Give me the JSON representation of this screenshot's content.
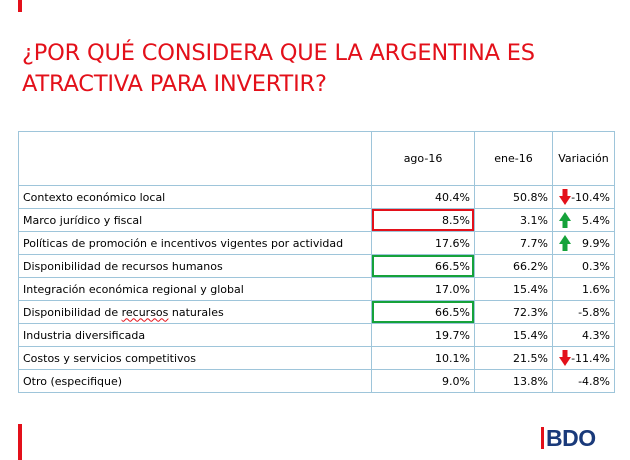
{
  "title": {
    "line1": "¿POR QUÉ CONSIDERA QUE LA ARGENTINA ES",
    "line2": "ATRACTIVA PARA INVERTIR?"
  },
  "table": {
    "headers": {
      "label": "",
      "ago": "ago-16",
      "ene": "ene-16",
      "var": "Variación"
    },
    "rows": [
      {
        "label": "Contexto económico local",
        "ago": "40.4%",
        "ene": "50.8%",
        "var": "-10.4%"
      },
      {
        "label": "Marco jurídico y fiscal",
        "ago": "8.5%",
        "ene": "3.1%",
        "var": "5.4%"
      },
      {
        "label": "Políticas de promoción e incentivos  vigentes por actividad",
        "ago": "17.6%",
        "ene": "7.7%",
        "var": "9.9%"
      },
      {
        "label": "Disponibilidad  de recursos humanos",
        "ago": "66.5%",
        "ene": "66.2%",
        "var": "0.3%"
      },
      {
        "label": "Integración económica regional y global",
        "ago": "17.0%",
        "ene": "15.4%",
        "var": "1.6%"
      },
      {
        "label_prefix": "Disponibilidad  de ",
        "label_underlined": "recursos",
        "label_suffix": " naturales",
        "ago": "66.5%",
        "ene": "72.3%",
        "var": "-5.8%"
      },
      {
        "label": "Industria  diversificada",
        "ago": "19.7%",
        "ene": "15.4%",
        "var": "4.3%"
      },
      {
        "label": "Costos y servicios  competitivos",
        "ago": "10.1%",
        "ene": "21.5%",
        "var": "-11.4%"
      },
      {
        "label": "Otro (especifique)",
        "ago": "9.0%",
        "ene": "13.8%",
        "var": "-4.8%"
      }
    ]
  },
  "colors": {
    "accent_red": "#e3101a",
    "accent_green": "#15a23a",
    "grid_blue": "#9ec5da",
    "logo_navy": "#1a3a7a"
  },
  "icons": {
    "down": "arrow-down-icon",
    "up": "arrow-up-icon"
  },
  "logo": {
    "text": "BDO"
  }
}
